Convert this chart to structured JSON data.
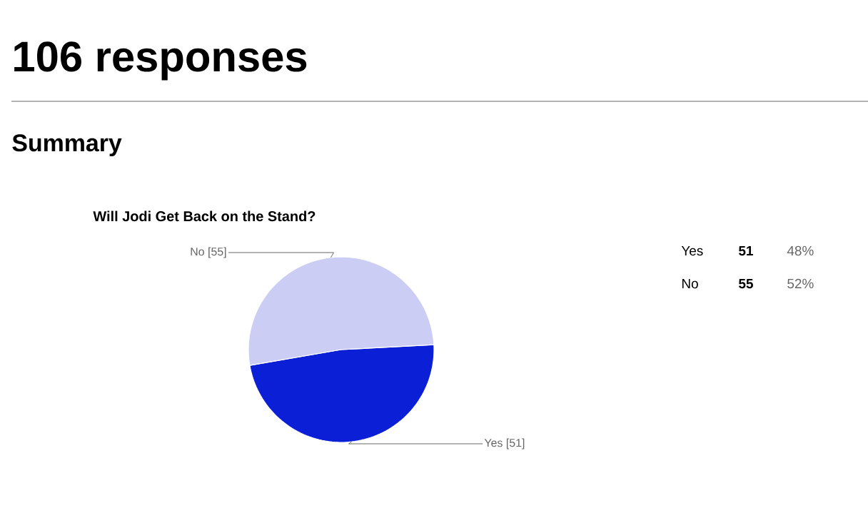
{
  "chart_data": [
    {
      "type": "pie",
      "title": "Will Jodi Get Back on the Stand?",
      "annotations": [
        "106 responses",
        "Summary"
      ],
      "categories": [
        "Yes",
        "No"
      ],
      "values": [
        51,
        55
      ],
      "colors": [
        "#0b1fd6",
        "#cccdf5"
      ],
      "value_labels": [
        "[51]",
        "[55]"
      ]
    },
    {
      "type": "other",
      "annotations": [
        "Yes",
        "51",
        "48%",
        "No",
        "55",
        "52%"
      ]
    }
  ]
}
